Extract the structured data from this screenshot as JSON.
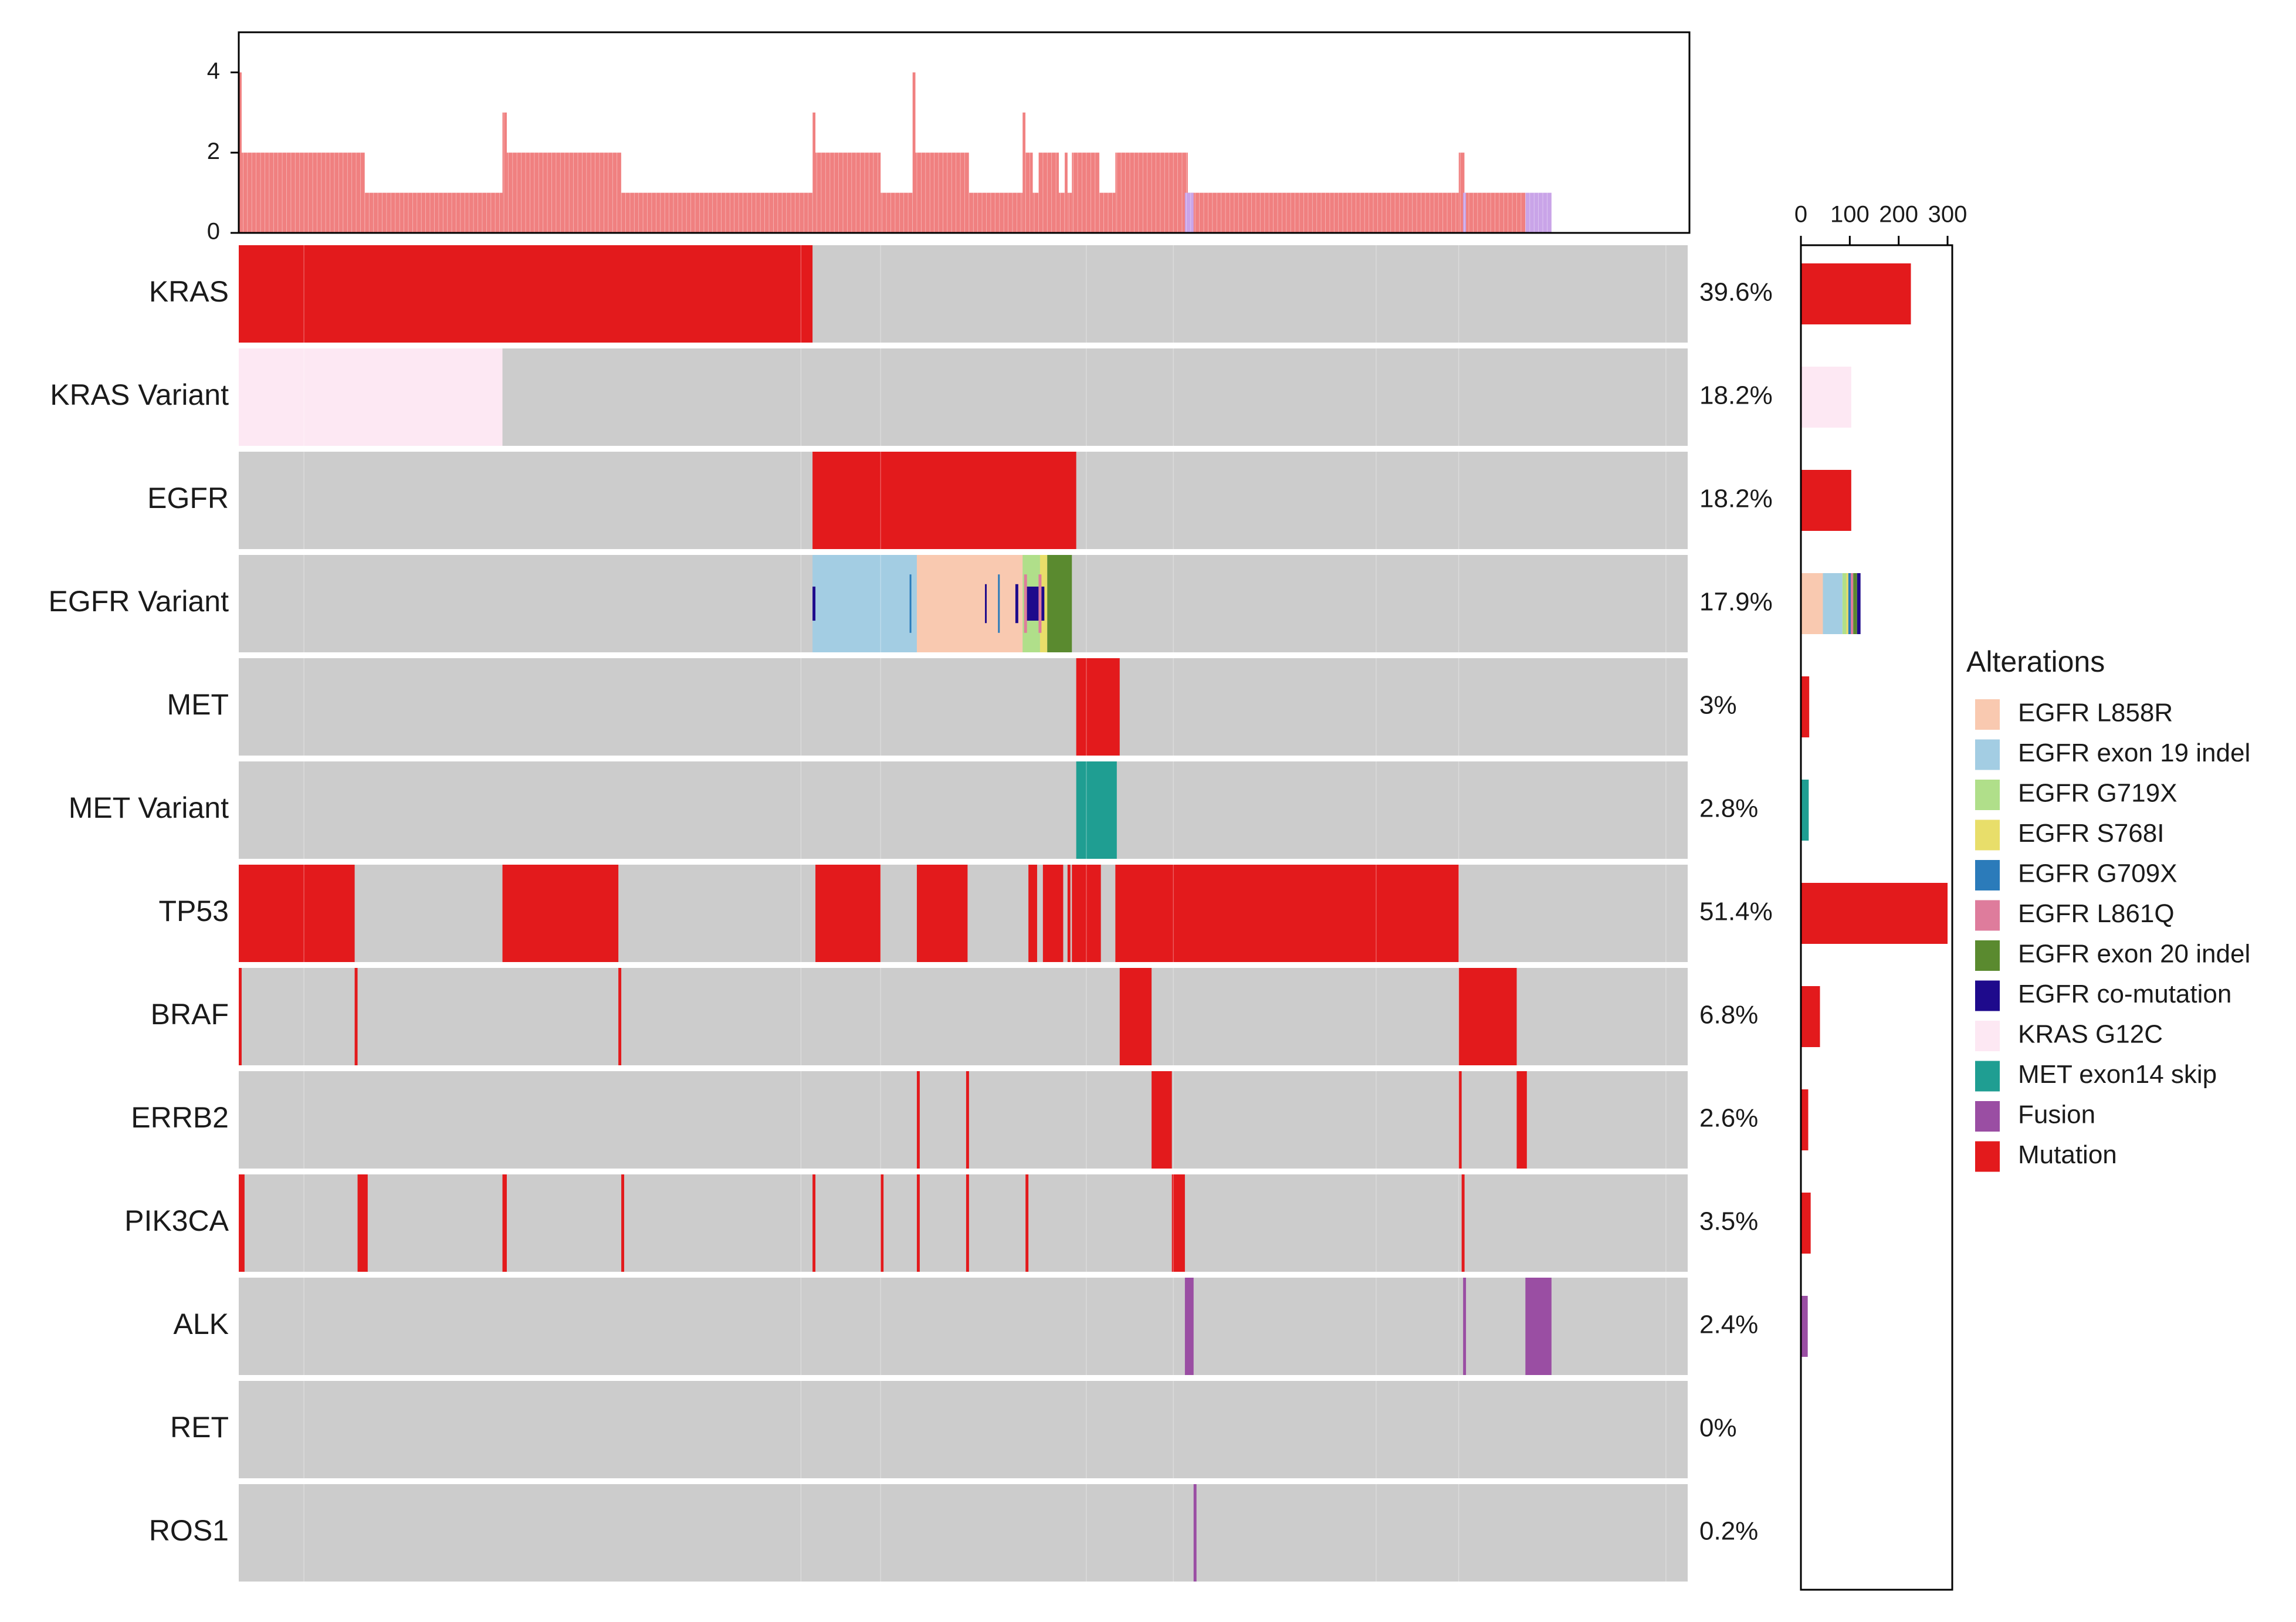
{
  "chart_data": {
    "type": "oncoprint",
    "title": "",
    "n_samples": 1000,
    "colors": {
      "background": "#cccccc",
      "EGFR L858R": "#f9c9b0",
      "EGFR exon 19 indel": "#a3cde3",
      "EGFR G719X": "#b0df8a",
      "EGFR S768I": "#e8de6a",
      "EGFR G709X": "#2b7bba",
      "EGFR L861Q": "#de7c9c",
      "EGFR exon 20 indel": "#5a8a2f",
      "EGFR co-mutation": "#1e0a8c",
      "KRAS G12C": "#fde8f3",
      "MET exon14 skip": "#1f9e92",
      "Fusion": "#9a4ea3",
      "Mutation": "#e31a1c",
      "top_mutation": "#f08080",
      "top_fusion": "#c9a4e8"
    },
    "top_barplot": {
      "ylim": [
        0,
        5
      ],
      "yticks": [
        0,
        2,
        4
      ],
      "segments": [
        {
          "start": 0,
          "end": 2,
          "value": 4
        },
        {
          "start": 2,
          "end": 87,
          "value": 2
        },
        {
          "start": 87,
          "end": 182,
          "value": 1
        },
        {
          "start": 182,
          "end": 185,
          "value": 3
        },
        {
          "start": 185,
          "end": 264,
          "value": 2
        },
        {
          "start": 264,
          "end": 396,
          "value": 1
        },
        {
          "start": 396,
          "end": 398,
          "value": 3
        },
        {
          "start": 398,
          "end": 443,
          "value": 2
        },
        {
          "start": 443,
          "end": 465,
          "value": 1
        },
        {
          "start": 465,
          "end": 467,
          "value": 4
        },
        {
          "start": 467,
          "end": 504,
          "value": 2
        },
        {
          "start": 504,
          "end": 541,
          "value": 1
        },
        {
          "start": 541,
          "end": 543,
          "value": 3
        },
        {
          "start": 543,
          "end": 548,
          "value": 2
        },
        {
          "start": 548,
          "end": 552,
          "value": 1
        },
        {
          "start": 552,
          "end": 566,
          "value": 2
        },
        {
          "start": 566,
          "end": 570,
          "value": 1
        },
        {
          "start": 570,
          "end": 572,
          "value": 2
        },
        {
          "start": 572,
          "end": 575,
          "value": 1
        },
        {
          "start": 575,
          "end": 594,
          "value": 2
        },
        {
          "start": 594,
          "end": 605,
          "value": 1
        },
        {
          "start": 605,
          "end": 655,
          "value": 2
        },
        {
          "start": 655,
          "end": 842,
          "value": 1
        },
        {
          "start": 842,
          "end": 846,
          "value": 2
        },
        {
          "start": 846,
          "end": 888,
          "value": 1
        },
        {
          "start": 888,
          "end": 906,
          "value": 1,
          "kind": "fusion"
        }
      ],
      "fusion_overlays": [
        {
          "start": 653,
          "end": 659,
          "value": 1
        },
        {
          "start": 845,
          "end": 847,
          "value": 1
        }
      ]
    },
    "genes": [
      {
        "name": "KRAS",
        "percent": "39.6%",
        "count": 225,
        "blocks": [
          {
            "start": 0,
            "end": 396,
            "type": "Mutation"
          }
        ]
      },
      {
        "name": "KRAS Variant",
        "percent": "18.2%",
        "count": 103,
        "blocks": [
          {
            "start": 0,
            "end": 182,
            "type": "KRAS G12C"
          }
        ]
      },
      {
        "name": "EGFR",
        "percent": "18.2%",
        "count": 103,
        "blocks": [
          {
            "start": 396,
            "end": 578,
            "type": "Mutation"
          }
        ]
      },
      {
        "name": "EGFR Variant",
        "percent": "17.9%",
        "count": 122,
        "stacked": [
          {
            "type": "EGFR L858R",
            "value": 45
          },
          {
            "type": "EGFR exon 19 indel",
            "value": 40
          },
          {
            "type": "EGFR G719X",
            "value": 8
          },
          {
            "type": "EGFR S768I",
            "value": 4
          },
          {
            "type": "EGFR G709X",
            "value": 5
          },
          {
            "type": "EGFR L861Q",
            "value": 5
          },
          {
            "type": "EGFR exon 20 indel",
            "value": 8
          },
          {
            "type": "EGFR co-mutation",
            "value": 7
          }
        ],
        "blocks": [
          {
            "start": 396,
            "end": 468,
            "type": "EGFR exon 19 indel"
          },
          {
            "start": 468,
            "end": 541,
            "type": "EGFR L858R"
          },
          {
            "start": 541,
            "end": 553,
            "type": "EGFR G719X"
          },
          {
            "start": 553,
            "end": 558,
            "type": "EGFR S768I"
          },
          {
            "start": 558,
            "end": 575,
            "type": "EGFR exon 20 indel"
          },
          {
            "start": 396,
            "end": 398,
            "type": "EGFR co-mutation",
            "h": 0.35
          },
          {
            "start": 463,
            "end": 464,
            "type": "EGFR G709X",
            "h": 0.6
          },
          {
            "start": 515,
            "end": 516,
            "type": "EGFR co-mutation",
            "h": 0.4
          },
          {
            "start": 524,
            "end": 525,
            "type": "EGFR G709X",
            "h": 0.6
          },
          {
            "start": 536,
            "end": 538,
            "type": "EGFR co-mutation",
            "h": 0.4
          },
          {
            "start": 542,
            "end": 544,
            "type": "EGFR L861Q",
            "h": 0.6
          },
          {
            "start": 544,
            "end": 552,
            "type": "EGFR co-mutation",
            "h": 0.35
          },
          {
            "start": 552,
            "end": 554,
            "type": "EGFR L861Q",
            "h": 0.6
          },
          {
            "start": 554,
            "end": 556,
            "type": "EGFR co-mutation",
            "h": 0.35
          }
        ]
      },
      {
        "name": "MET",
        "percent": "3%",
        "count": 17,
        "blocks": [
          {
            "start": 578,
            "end": 608,
            "type": "Mutation"
          }
        ]
      },
      {
        "name": "MET Variant",
        "percent": "2.8%",
        "count": 16,
        "blocks": [
          {
            "start": 578,
            "end": 606,
            "type": "MET exon14 skip"
          }
        ]
      },
      {
        "name": "TP53",
        "percent": "51.4%",
        "count": 300,
        "blocks": [
          {
            "start": 0,
            "end": 80,
            "type": "Mutation"
          },
          {
            "start": 182,
            "end": 262,
            "type": "Mutation"
          },
          {
            "start": 398,
            "end": 443,
            "type": "Mutation"
          },
          {
            "start": 468,
            "end": 503,
            "type": "Mutation"
          },
          {
            "start": 545,
            "end": 551,
            "type": "Mutation"
          },
          {
            "start": 555,
            "end": 569,
            "type": "Mutation"
          },
          {
            "start": 572,
            "end": 574,
            "type": "Mutation"
          },
          {
            "start": 575,
            "end": 595,
            "type": "Mutation"
          },
          {
            "start": 605,
            "end": 842,
            "type": "Mutation"
          }
        ]
      },
      {
        "name": "BRAF",
        "percent": "6.8%",
        "count": 39,
        "blocks": [
          {
            "start": 0,
            "end": 2,
            "type": "Mutation"
          },
          {
            "start": 80,
            "end": 82,
            "type": "Mutation"
          },
          {
            "start": 262,
            "end": 264,
            "type": "Mutation"
          },
          {
            "start": 608,
            "end": 630,
            "type": "Mutation"
          },
          {
            "start": 842,
            "end": 882,
            "type": "Mutation"
          }
        ]
      },
      {
        "name": "ERRB2",
        "percent": "2.6%",
        "count": 15,
        "blocks": [
          {
            "start": 468,
            "end": 470,
            "type": "Mutation"
          },
          {
            "start": 502,
            "end": 504,
            "type": "Mutation"
          },
          {
            "start": 630,
            "end": 644,
            "type": "Mutation"
          },
          {
            "start": 842,
            "end": 844,
            "type": "Mutation"
          },
          {
            "start": 882,
            "end": 889,
            "type": "Mutation"
          }
        ]
      },
      {
        "name": "PIK3CA",
        "percent": "3.5%",
        "count": 20,
        "blocks": [
          {
            "start": 0,
            "end": 4,
            "type": "Mutation"
          },
          {
            "start": 82,
            "end": 89,
            "type": "Mutation"
          },
          {
            "start": 182,
            "end": 185,
            "type": "Mutation"
          },
          {
            "start": 264,
            "end": 266,
            "type": "Mutation"
          },
          {
            "start": 396,
            "end": 398,
            "type": "Mutation"
          },
          {
            "start": 443,
            "end": 445,
            "type": "Mutation"
          },
          {
            "start": 468,
            "end": 470,
            "type": "Mutation"
          },
          {
            "start": 502,
            "end": 504,
            "type": "Mutation"
          },
          {
            "start": 543,
            "end": 545,
            "type": "Mutation"
          },
          {
            "start": 644,
            "end": 653,
            "type": "Mutation"
          },
          {
            "start": 844,
            "end": 846,
            "type": "Mutation"
          }
        ]
      },
      {
        "name": "ALK",
        "percent": "2.4%",
        "count": 14,
        "blocks": [
          {
            "start": 653,
            "end": 659,
            "type": "Fusion"
          },
          {
            "start": 845,
            "end": 847,
            "type": "Fusion"
          },
          {
            "start": 888,
            "end": 906,
            "type": "Fusion"
          }
        ]
      },
      {
        "name": "RET",
        "percent": "0%",
        "count": 0,
        "blocks": []
      },
      {
        "name": "ROS1",
        "percent": "0.2%",
        "count": 1,
        "blocks": [
          {
            "start": 659,
            "end": 661,
            "type": "Fusion"
          }
        ]
      }
    ],
    "right_barplot": {
      "xlim": [
        0,
        300
      ],
      "xticks": [
        "0",
        "100",
        "200",
        "300"
      ]
    },
    "legend": {
      "title": "Alterations",
      "entries": [
        {
          "label": "EGFR L858R",
          "type": "EGFR L858R"
        },
        {
          "label": "EGFR exon 19 indel",
          "type": "EGFR exon 19 indel"
        },
        {
          "label": "EGFR G719X",
          "type": "EGFR G719X"
        },
        {
          "label": "EGFR S768I",
          "type": "EGFR S768I"
        },
        {
          "label": "EGFR G709X",
          "type": "EGFR G709X"
        },
        {
          "label": "EGFR L861Q",
          "type": "EGFR L861Q"
        },
        {
          "label": "EGFR exon 20 indel",
          "type": "EGFR exon 20 indel"
        },
        {
          "label": "EGFR co-mutation",
          "type": "EGFR co-mutation"
        },
        {
          "label": "KRAS G12C",
          "type": "KRAS G12C"
        },
        {
          "label": "MET exon14 skip",
          "type": "MET exon14 skip"
        },
        {
          "label": "Fusion",
          "type": "Fusion"
        },
        {
          "label": "Mutation",
          "type": "Mutation"
        }
      ]
    }
  }
}
